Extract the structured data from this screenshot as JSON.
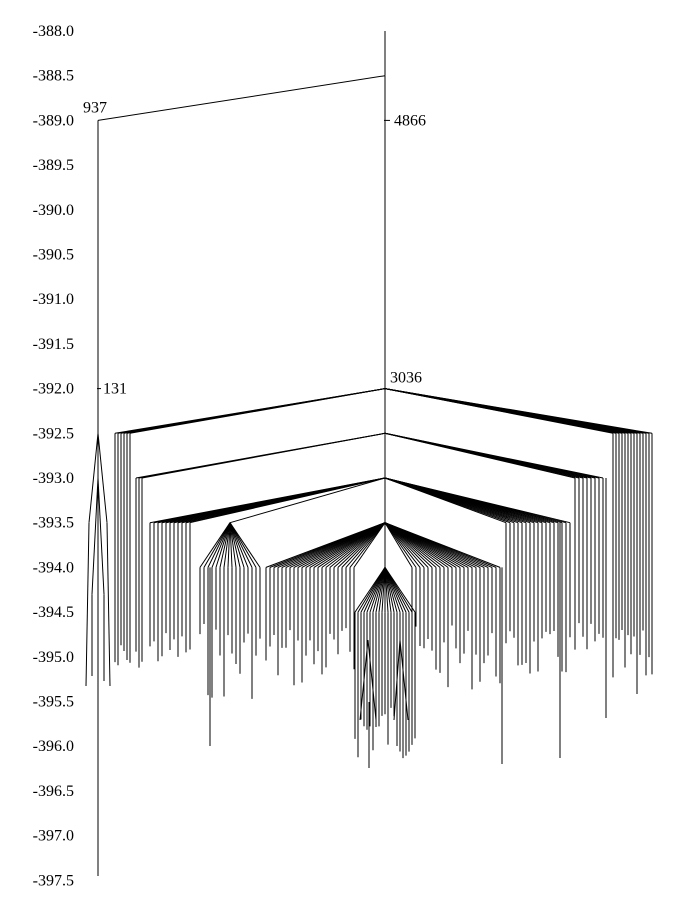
{
  "chart_data": {
    "type": "disconnectivity-graph",
    "title": "",
    "ylabel": "",
    "yaxis": {
      "min": -397.5,
      "max": -388.0,
      "step": 0.5,
      "tick_labels": [
        "-388.0",
        "-388.5",
        "-389.0",
        "-389.5",
        "-390.0",
        "-390.5",
        "-391.0",
        "-391.5",
        "-392.0",
        "-392.5",
        "-393.0",
        "-393.5",
        "-394.0",
        "-394.5",
        "-395.0",
        "-395.5",
        "-396.0",
        "-396.5",
        "-397.0",
        "-397.5"
      ]
    },
    "root": {
      "energy": -388.5
    },
    "node_labels": [
      {
        "text": "937",
        "energy": -389.0
      },
      {
        "text": "4866",
        "energy": -389.0
      },
      {
        "text": "131",
        "energy": -392.0
      },
      {
        "text": "3036",
        "energy": -392.0
      }
    ],
    "branch_levels": [
      -392.0,
      -392.5,
      -393.0,
      -393.5,
      -394.0
    ],
    "lowest_minimum": -397.5
  }
}
